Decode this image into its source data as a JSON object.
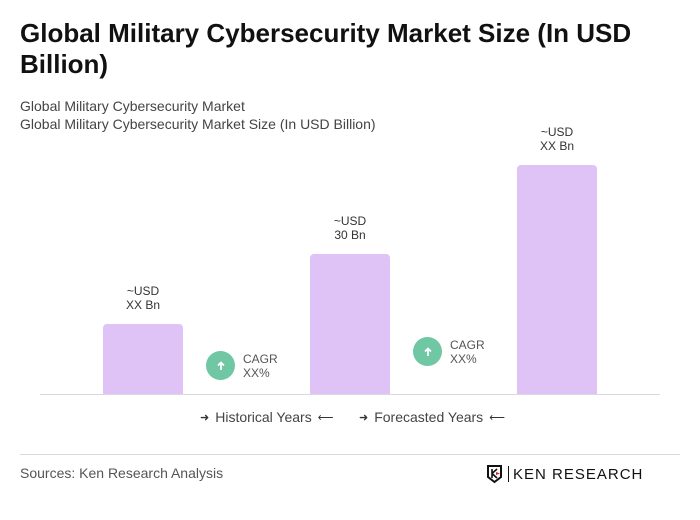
{
  "title": "Global Military Cybersecurity Market Size (In USD Billion)",
  "subtitle1": "Global Military Cybersecurity Market",
  "subtitle2": "Global Military Cybersecurity Market Size (In USD Billion)",
  "chart_data": {
    "type": "bar",
    "bars": [
      {
        "label_line1": "~USD",
        "label_line2": "XX Bn",
        "value": 15
      },
      {
        "label_line1": "~USD",
        "label_line2": "30 Bn",
        "value": 30
      },
      {
        "label_line1": "~USD",
        "label_line2": "XX Bn",
        "value": 49
      }
    ],
    "cagr": [
      {
        "line1": "CAGR",
        "line2": "XX%"
      },
      {
        "line1": "CAGR",
        "line2": "XX%"
      }
    ],
    "legend": [
      "Historical Years",
      "Forecasted Years"
    ],
    "bar_color": "#dfc3f7",
    "cagr_color": "#6fc7a3",
    "grid": false
  },
  "source": "Sources: Ken Research Analysis",
  "logo_text": "KEN RESEARCH"
}
